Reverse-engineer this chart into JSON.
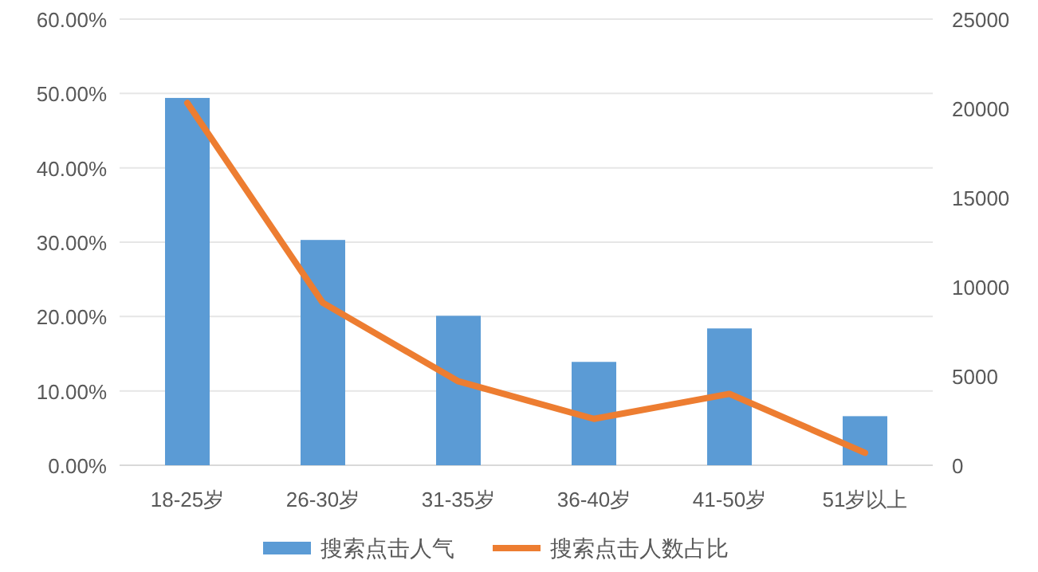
{
  "chart_data": {
    "type": "bar",
    "categories": [
      "18-25岁",
      "26-30岁",
      "31-35岁",
      "36-40岁",
      "41-50岁",
      "51岁以上"
    ],
    "series": [
      {
        "name": "搜索点击人气",
        "color": "#5b9bd5",
        "values": [
          49.4,
          30.3,
          20.1,
          13.9,
          18.4,
          6.6
        ]
      },
      {
        "name": "搜索点击人数占比",
        "type": "line",
        "axis": "y2",
        "color": "#ed7d31",
        "values": [
          20300,
          9100,
          4700,
          2600,
          4000,
          700
        ]
      }
    ],
    "ylim": [
      0,
      60
    ],
    "yticks": [
      {
        "value": 0,
        "label": "0.00%"
      },
      {
        "value": 10,
        "label": "10.00%"
      },
      {
        "value": 20,
        "label": "20.00%"
      },
      {
        "value": 30,
        "label": "30.00%"
      },
      {
        "value": 40,
        "label": "40.00%"
      },
      {
        "value": 50,
        "label": "50.00%"
      },
      {
        "value": 60,
        "label": "60.00%"
      }
    ],
    "y2lim": [
      0,
      25000
    ],
    "y2ticks": [
      0,
      5000,
      10000,
      15000,
      20000,
      25000
    ],
    "grid": "y",
    "legend": "bottom",
    "marker": "none"
  }
}
